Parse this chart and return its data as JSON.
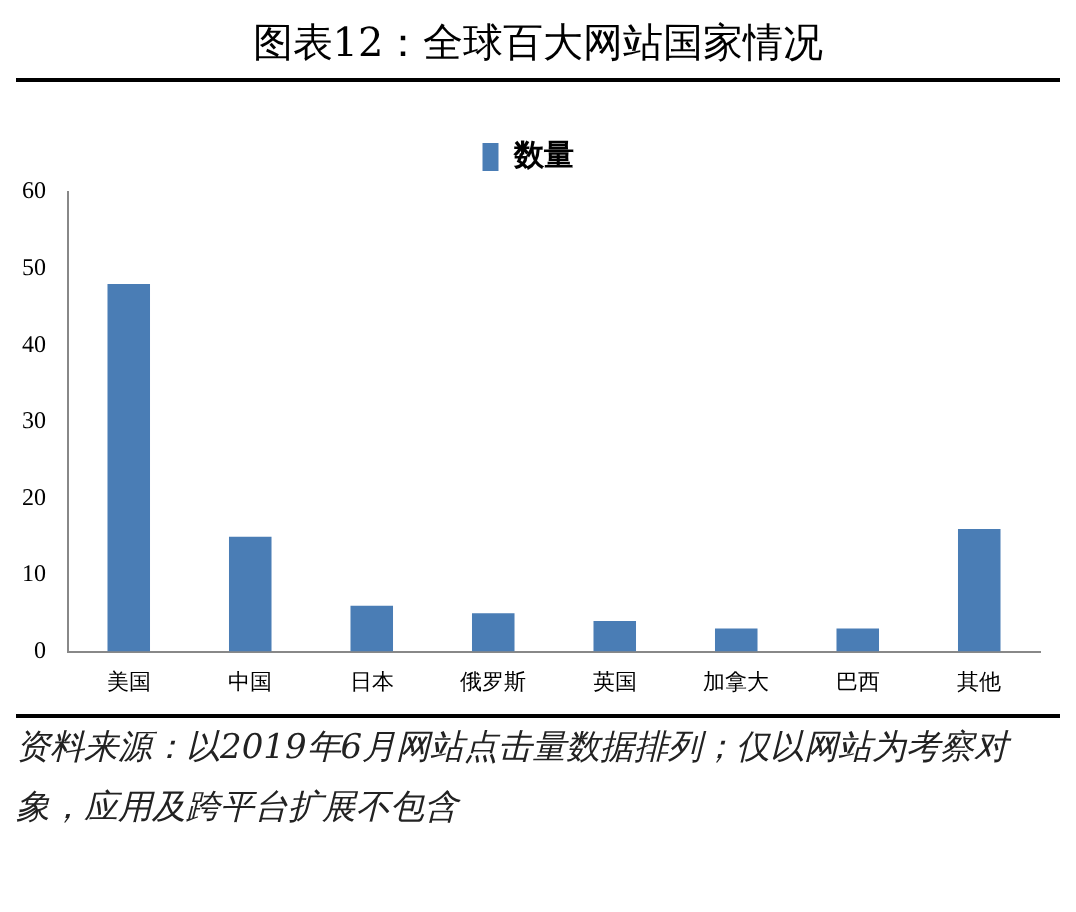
{
  "chart_data": {
    "type": "bar",
    "title": "图表12：全球百大网站国家情况",
    "categories": [
      "美国",
      "中国",
      "日本",
      "俄罗斯",
      "英国",
      "加拿大",
      "巴西",
      "其他"
    ],
    "series": [
      {
        "name": "数量",
        "color": "#4a7db5",
        "values": [
          48,
          15,
          6,
          5,
          4,
          3,
          3,
          16
        ]
      }
    ],
    "ylim": [
      0,
      60
    ],
    "yticks": [
      0,
      10,
      20,
      30,
      40,
      50,
      60
    ],
    "grid": false,
    "legend": "top",
    "annotations": [
      "资料来源：以2019年6月网站点击量数据排列；仅以网站为考察对象，应用及跨平台扩展不包含"
    ]
  }
}
